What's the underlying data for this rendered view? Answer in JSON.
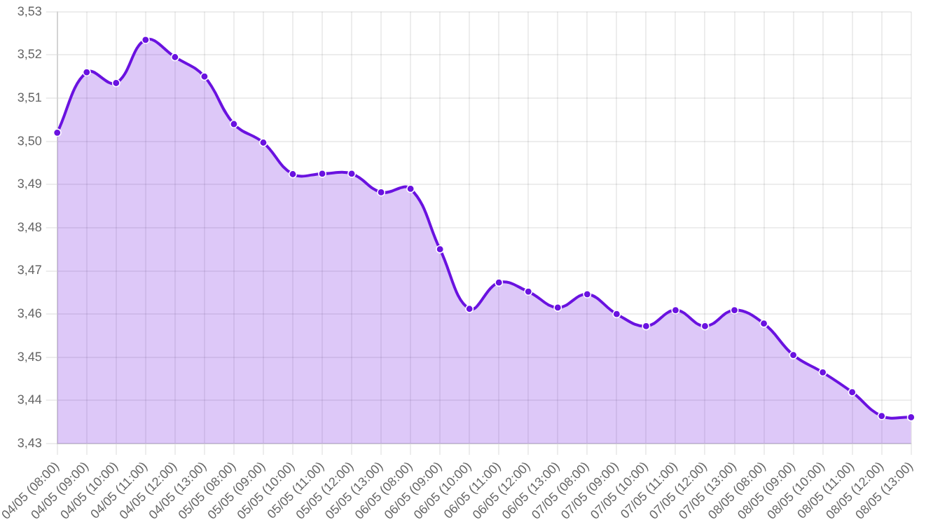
{
  "chart_data": {
    "type": "area",
    "categories": [
      "04/05 (08:00)",
      "04/05 (09:00)",
      "04/05 (10:00)",
      "04/05 (11:00)",
      "04/05 (12:00)",
      "04/05 (13:00)",
      "05/05 (08:00)",
      "05/05 (09:00)",
      "05/05 (10:00)",
      "05/05 (11:00)",
      "05/05 (12:00)",
      "05/05 (13:00)",
      "06/05 (08:00)",
      "06/05 (09:00)",
      "06/05 (10:00)",
      "06/05 (11:00)",
      "06/05 (12:00)",
      "06/05 (13:00)",
      "07/05 (08:00)",
      "07/05 (09:00)",
      "07/05 (10:00)",
      "07/05 (11:00)",
      "07/05 (12:00)",
      "07/05 (13:00)",
      "08/05 (08:00)",
      "08/05 (09:00)",
      "08/05 (10:00)",
      "08/05 (11:00)",
      "08/05 (12:00)",
      "08/05 (13:00)"
    ],
    "series": [
      {
        "color": "#6a12e0",
        "values": [
          3.502,
          3.516,
          3.5135,
          3.5235,
          3.5195,
          3.515,
          3.504,
          3.4997,
          3.4924,
          3.4925,
          3.4925,
          3.4882,
          3.489,
          3.475,
          3.4612,
          3.4673,
          3.4652,
          3.4615,
          3.4646,
          3.46,
          3.4572,
          3.4609,
          3.4572,
          3.4609,
          3.4578,
          3.4505,
          3.4465,
          3.4419,
          3.4364,
          3.4361
        ]
      }
    ],
    "ylim": [
      3.43,
      3.53
    ],
    "yticks": [
      {
        "value": 3.43,
        "label": "3,43"
      },
      {
        "value": 3.44,
        "label": "3,44"
      },
      {
        "value": 3.45,
        "label": "3,45"
      },
      {
        "value": 3.46,
        "label": "3,46"
      },
      {
        "value": 3.47,
        "label": "3,47"
      },
      {
        "value": 3.48,
        "label": "3,48"
      },
      {
        "value": 3.49,
        "label": "3,49"
      },
      {
        "value": 3.5,
        "label": "3,50"
      },
      {
        "value": 3.51,
        "label": "3,51"
      },
      {
        "value": 3.52,
        "label": "3,52"
      },
      {
        "value": 3.53,
        "label": "3,53"
      }
    ],
    "grid": true,
    "legend": false,
    "marker": "circle",
    "line_style": "solid"
  }
}
